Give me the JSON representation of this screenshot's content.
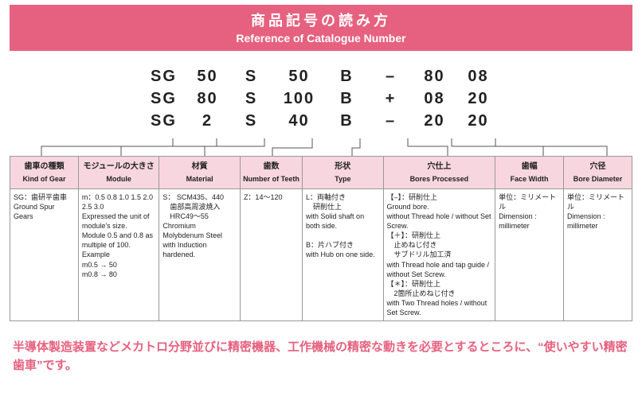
{
  "header": {
    "title_jp": "商品記号の読み方",
    "title_en": "Reference of Catalogue Number"
  },
  "code_rows": [
    [
      "SG",
      "50",
      "S",
      "50",
      "B",
      "–",
      "80",
      "08"
    ],
    [
      "SG",
      "80",
      "S",
      "100",
      "B",
      "+",
      "08",
      "20"
    ],
    [
      "SG",
      "2",
      "S",
      "40",
      "B",
      "–",
      "20",
      "20"
    ]
  ],
  "columns": [
    {
      "jp": "歯車の種類",
      "en": "Kind of Gear",
      "body": "SG：歯研平歯車\nGround Spur Gears"
    },
    {
      "jp": "モジュールの大きさ",
      "en": "Module",
      "body": "m：0.5 0.8 1.0 1.5 2.0 2.5 3.0\nExpressed the unit of module's size.\nModule 0.5 and 0.8 as multiple of 100.\nExample\nm0.5 → 50\nm0.8 → 80"
    },
    {
      "jp": "材質",
      "en": "Material",
      "body": "S： SCM435、440\n　歯部高周波焼入\n　HRC49～55\nChromium Molybdenum Steel with Induction hardened."
    },
    {
      "jp": "歯数",
      "en": "Number of Teeth",
      "body": "Z：14～120"
    },
    {
      "jp": "形状",
      "en": "Type",
      "body": "L：両軸付き\n　研削仕上\nwith Solid shaft on both side.\n\nB：片ハブ付き\nwith Hub on one side."
    },
    {
      "jp": "穴仕上",
      "en": "Bores Processed",
      "body": "【–】：研削仕上\nGround bore.\nwithout Thread hole / without Set Screw.\n【＋】：研削仕上\n　止めねじ付き\n　サブドリル加工済\nwith Thread hole and tap guide / without Set Screw.\n【＊】：研削仕上\n　2箇所止めねじ付き\nwith Two Thread holes / without Set Screw."
    },
    {
      "jp": "歯幅",
      "en": "Face Width",
      "body": "単位：ミリメートル\nDimension : millimeter"
    },
    {
      "jp": "穴径",
      "en": "Bore Diameter",
      "body": "単位：ミリメートル\nDimension : millimeter"
    }
  ],
  "col_widths": [
    "11%",
    "13%",
    "13%",
    "10%",
    "13%",
    "18%",
    "11%",
    "11%"
  ],
  "footer": "半導体製造装置などメカトロ分野並びに精密機器、工作機械の精密な動きを必要とするところに、“使いやすい精密歯車”です。"
}
